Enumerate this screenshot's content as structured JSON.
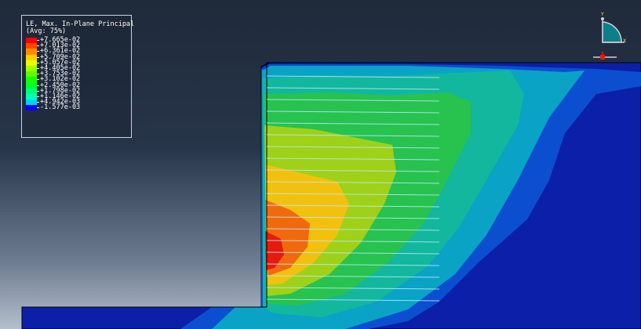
{
  "legend": {
    "title_line1": "LE, Max. In-Plane Principal",
    "title_line2": "(Avg: 75%)",
    "entries": [
      {
        "label": "+7.665e-02",
        "color": "#ff0000"
      },
      {
        "label": "+7.013e-02",
        "color": "#ff4600"
      },
      {
        "label": "+6.361e-02",
        "color": "#ff8c00"
      },
      {
        "label": "+5.709e-02",
        "color": "#ffd200"
      },
      {
        "label": "+5.057e-02",
        "color": "#e8ff00"
      },
      {
        "label": "+4.405e-02",
        "color": "#a2ff00"
      },
      {
        "label": "+3.753e-02",
        "color": "#5cff00"
      },
      {
        "label": "+3.102e-02",
        "color": "#17ff00"
      },
      {
        "label": "+2.450e-02",
        "color": "#00ff2e"
      },
      {
        "label": "+1.798e-02",
        "color": "#00ff74"
      },
      {
        "label": "+1.146e-02",
        "color": "#00ffba"
      },
      {
        "label": "+4.942e-03",
        "color": "#00d2ff"
      },
      {
        "label": "-1.577e-03",
        "color": "#0000ff"
      }
    ]
  },
  "triad": {
    "y_label": "Y",
    "x_label": "X"
  },
  "colors": {
    "base": "#0b1fa8",
    "band1": "#0b4fd0",
    "band2": "#0aa3c6",
    "band3": "#12b79e",
    "band4": "#28c24f",
    "band5": "#9fd118",
    "band6": "#f2c10e",
    "band7": "#f06a0d",
    "band8": "#e51b0d",
    "fiber": "#b9e9ff"
  }
}
